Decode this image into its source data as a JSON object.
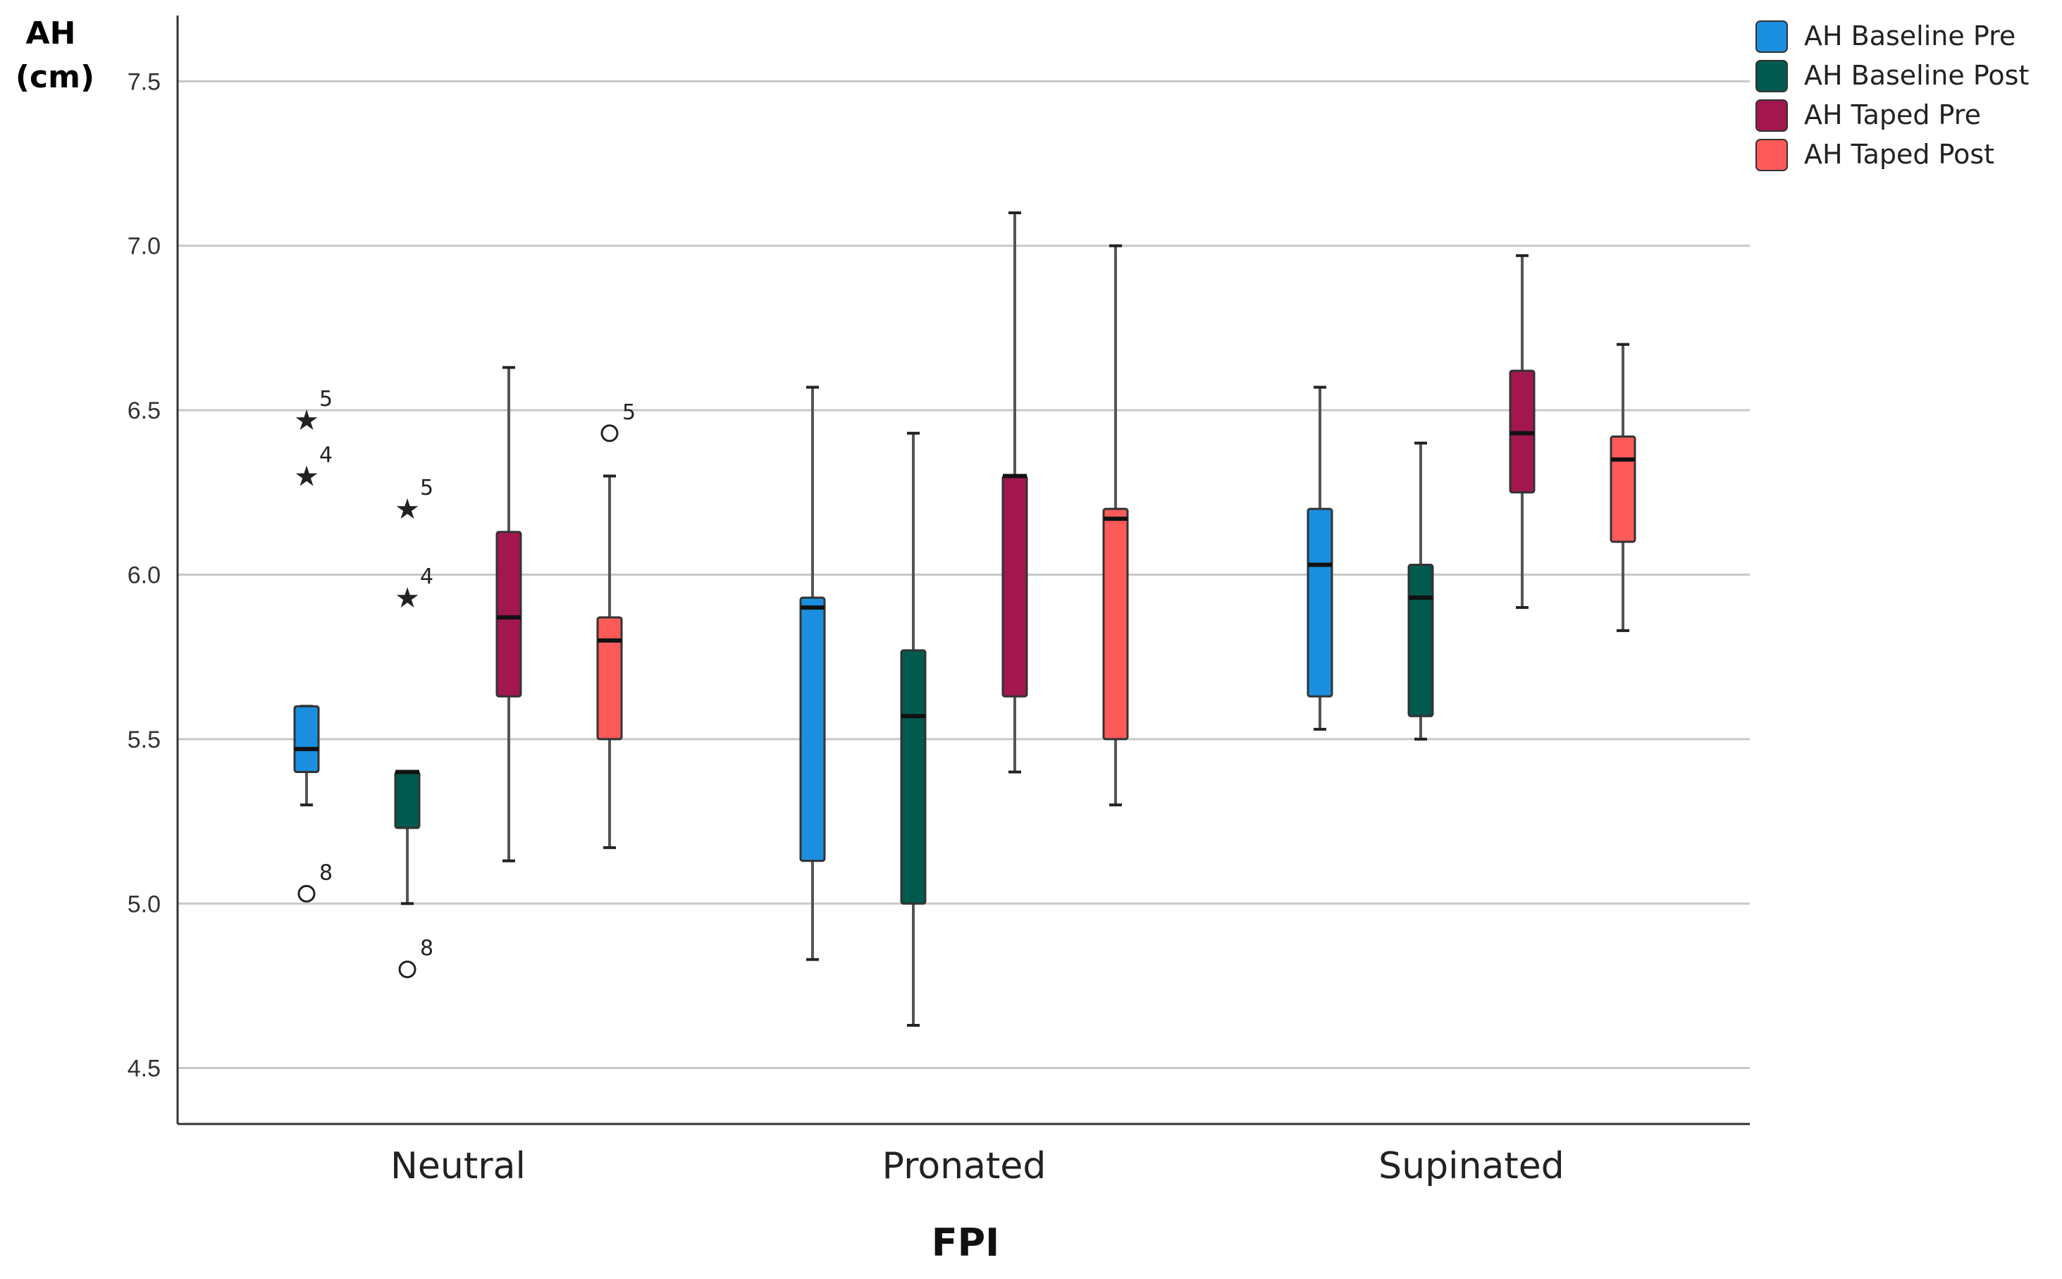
{
  "chart_data": {
    "type": "boxplot",
    "title": "",
    "xlabel": "FPI",
    "ylabel_lines": [
      "AH",
      "(cm)"
    ],
    "ylim": [
      4.33,
      7.7
    ],
    "yticks": [
      4.5,
      5.0,
      5.5,
      6.0,
      6.5,
      7.0,
      7.5
    ],
    "ytick_labels": [
      "4.5",
      "5.0",
      "5.5",
      "6.0",
      "6.5",
      "7.0",
      "7.5"
    ],
    "grid": true,
    "legend_position": "top-right",
    "categories": [
      "Neutral",
      "Pronated",
      "Supinated"
    ],
    "series": [
      {
        "name": "AH Baseline Pre",
        "color": "#1a8fe0",
        "boxes": [
          {
            "whisker_low": 5.3,
            "q1": 5.4,
            "median": 5.47,
            "q3": 5.6,
            "whisker_high": 5.6,
            "outliers": [
              {
                "value": 6.47,
                "marker": "star",
                "label": "5"
              },
              {
                "value": 6.3,
                "marker": "star",
                "label": "4"
              },
              {
                "value": 5.03,
                "marker": "circle",
                "label": "8"
              }
            ]
          },
          {
            "whisker_low": 4.83,
            "q1": 5.13,
            "median": 5.9,
            "q3": 5.93,
            "whisker_high": 6.57,
            "outliers": []
          },
          {
            "whisker_low": 5.53,
            "q1": 5.63,
            "median": 6.03,
            "q3": 6.2,
            "whisker_high": 6.57,
            "outliers": []
          }
        ]
      },
      {
        "name": "AH Baseline Post",
        "color": "#005a4e",
        "boxes": [
          {
            "whisker_low": 5.0,
            "q1": 5.23,
            "median": 5.4,
            "q3": 5.4,
            "whisker_high": 5.4,
            "outliers": [
              {
                "value": 6.2,
                "marker": "star",
                "label": "5"
              },
              {
                "value": 5.93,
                "marker": "star",
                "label": "4"
              },
              {
                "value": 4.8,
                "marker": "circle",
                "label": "8"
              }
            ]
          },
          {
            "whisker_low": 4.63,
            "q1": 5.0,
            "median": 5.57,
            "q3": 5.77,
            "whisker_high": 6.43,
            "outliers": []
          },
          {
            "whisker_low": 5.5,
            "q1": 5.57,
            "median": 5.93,
            "q3": 6.03,
            "whisker_high": 6.4,
            "outliers": []
          }
        ]
      },
      {
        "name": "AH Taped Pre",
        "color": "#a3174f",
        "boxes": [
          {
            "whisker_low": 5.13,
            "q1": 5.63,
            "median": 5.87,
            "q3": 6.13,
            "whisker_high": 6.63,
            "outliers": []
          },
          {
            "whisker_low": 5.4,
            "q1": 5.63,
            "median": 6.3,
            "q3": 6.3,
            "whisker_high": 7.1,
            "outliers": []
          },
          {
            "whisker_low": 5.9,
            "q1": 6.25,
            "median": 6.43,
            "q3": 6.62,
            "whisker_high": 6.97,
            "outliers": []
          }
        ]
      },
      {
        "name": "AH Taped Post",
        "color": "#ff5a5a",
        "boxes": [
          {
            "whisker_low": 5.17,
            "q1": 5.5,
            "median": 5.8,
            "q3": 5.87,
            "whisker_high": 6.3,
            "outliers": [
              {
                "value": 6.43,
                "marker": "circle",
                "label": "5"
              }
            ]
          },
          {
            "whisker_low": 5.3,
            "q1": 5.5,
            "median": 6.17,
            "q3": 6.2,
            "whisker_high": 7.0,
            "outliers": []
          },
          {
            "whisker_low": 5.83,
            "q1": 6.1,
            "median": 6.35,
            "q3": 6.42,
            "whisker_high": 6.7,
            "outliers": []
          }
        ]
      }
    ]
  }
}
